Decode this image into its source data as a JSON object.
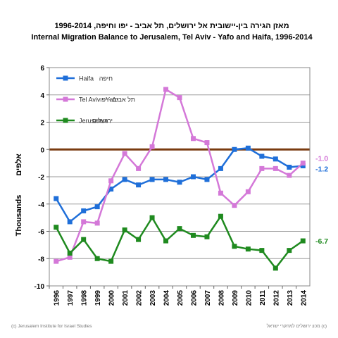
{
  "chart_data": {
    "type": "line",
    "title": "Internal Migration Balance to Jerusalem, Tel Aviv - Yafo and Haifa, 1996-2014",
    "title_hebrew": "מאזן הגירה בין-יישובית אל ירושלים, תל אביב - יפו וחיפה, 1996-2014",
    "xlabel": "",
    "ylabel": "Thousands",
    "ylabel_hebrew": "אלפים",
    "ylim": [
      -10,
      6
    ],
    "yticks": [
      -10,
      -8,
      -6,
      -4,
      -2,
      0,
      2,
      4,
      6
    ],
    "grid": true,
    "legend_position": "top-left",
    "categories": [
      "1996",
      "1997",
      "1998",
      "1999",
      "2000",
      "2001",
      "2002",
      "2003",
      "2004",
      "2005",
      "2006",
      "2007",
      "2008",
      "2009",
      "2010",
      "2011",
      "2012",
      "2013",
      "2014"
    ],
    "series": [
      {
        "name": "Haifa",
        "name_hebrew": "חיפה",
        "color": "#1f6fd9",
        "marker": "square",
        "values": [
          -3.6,
          -5.3,
          -4.5,
          -4.2,
          -2.9,
          -2.2,
          -2.6,
          -2.2,
          -2.2,
          -2.4,
          -2.0,
          -2.2,
          -1.4,
          0.0,
          0.1,
          -0.5,
          -0.7,
          -1.3,
          -1.2
        ],
        "end_label": "-1.2"
      },
      {
        "name": "Tel Aviv - Yafo",
        "name_hebrew": "תל אביב - יפו",
        "color": "#d478d8",
        "marker": "square",
        "values": [
          -8.2,
          -7.9,
          -5.3,
          -5.4,
          -2.3,
          -0.3,
          -1.4,
          0.2,
          4.4,
          3.8,
          0.8,
          0.5,
          -3.2,
          -4.1,
          -3.1,
          -1.4,
          -1.4,
          -1.9,
          -1.0
        ],
        "end_label": "-1.0"
      },
      {
        "name": "Jerusalem",
        "name_hebrew": "ירושלים",
        "color": "#1f8a1f",
        "marker": "square",
        "values": [
          -5.7,
          -7.6,
          -6.6,
          -8.0,
          -8.2,
          -5.9,
          -6.6,
          -5.0,
          -6.7,
          -5.8,
          -6.3,
          -6.4,
          -4.9,
          -7.1,
          -7.3,
          -7.4,
          -8.7,
          -7.4,
          -6.7
        ],
        "end_label": "-6.7"
      }
    ],
    "zero_line_color": "#7a3b10"
  },
  "footer": {
    "left": "(c) Jerusalem Institute for Israel Studies",
    "right": "(c) מכון ירושלים למחקרי ישראל"
  }
}
